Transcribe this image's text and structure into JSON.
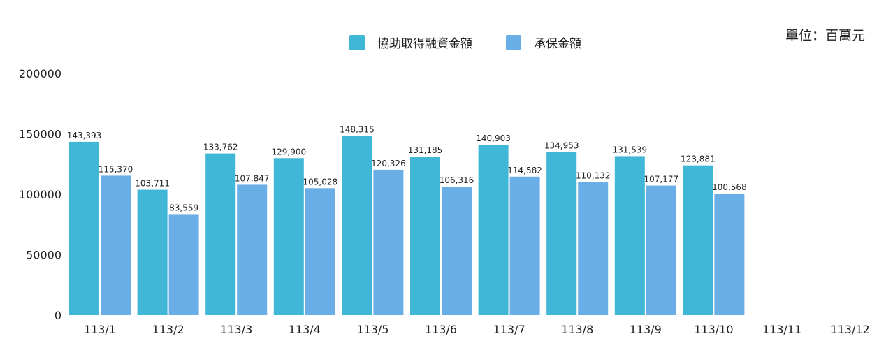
{
  "unit_label": "單位：百萬元",
  "chart_data": {
    "type": "bar",
    "categories": [
      "113/1",
      "113/2",
      "113/3",
      "113/4",
      "113/5",
      "113/6",
      "113/7",
      "113/8",
      "113/9",
      "113/10",
      "113/11",
      "113/12"
    ],
    "series": [
      {
        "name": "協助取得融資金額",
        "color": "#40B7D6",
        "values": [
          143393,
          103711,
          133762,
          129900,
          148315,
          131185,
          140903,
          134953,
          131539,
          123881,
          null,
          null
        ],
        "labels": [
          "143,393",
          "103,711",
          "133,762",
          "129,900",
          "148,315",
          "131,185",
          "140,903",
          "134,953",
          "131,539",
          "123,881",
          "",
          ""
        ]
      },
      {
        "name": "承保金額",
        "color": "#6AAEE8",
        "values": [
          115370,
          83559,
          107847,
          105028,
          120326,
          106316,
          114582,
          110132,
          107177,
          100568,
          null,
          null
        ],
        "labels": [
          "115,370",
          "83,559",
          "107,847",
          "105,028",
          "120,326",
          "106,316",
          "114,582",
          "110,132",
          "107,177",
          "100,568",
          "",
          ""
        ]
      }
    ],
    "yticks": [
      "0",
      "50000",
      "100000",
      "150000",
      "200000"
    ],
    "ylim": [
      0,
      200000
    ],
    "legend_position": "top-center"
  }
}
